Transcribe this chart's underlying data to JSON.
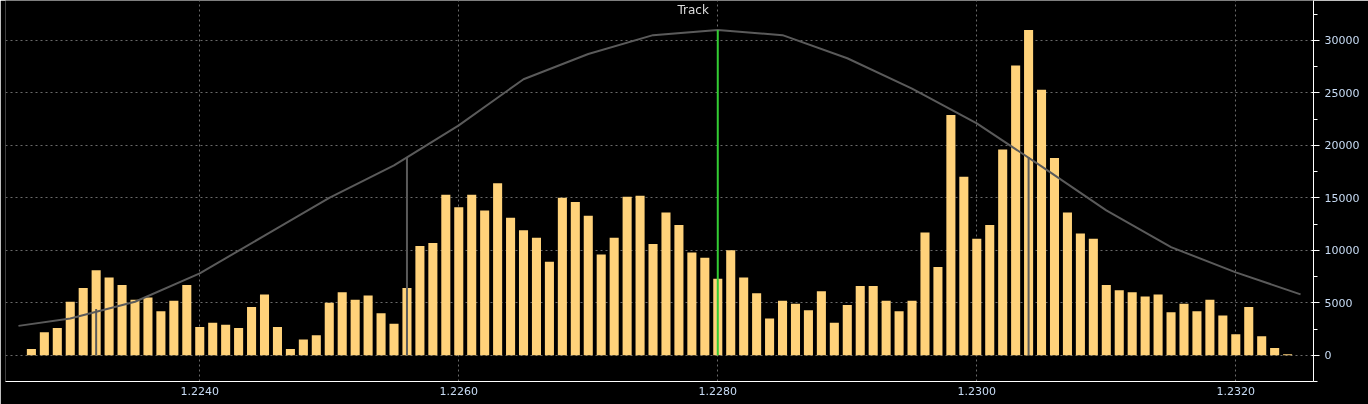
{
  "chart_data": {
    "type": "bar",
    "x": [
      1.2227,
      1.2228,
      1.2229,
      1.223,
      1.2231,
      1.2232,
      1.2233,
      1.2234,
      1.2235,
      1.2236,
      1.2237,
      1.2238,
      1.2239,
      1.224,
      1.2241,
      1.2242,
      1.2243,
      1.2244,
      1.2245,
      1.2246,
      1.2247,
      1.2248,
      1.2249,
      1.225,
      1.2251,
      1.2252,
      1.2253,
      1.2254,
      1.2255,
      1.2256,
      1.2257,
      1.2258,
      1.2259,
      1.226,
      1.2261,
      1.2262,
      1.2263,
      1.2264,
      1.2265,
      1.2266,
      1.2267,
      1.2268,
      1.2269,
      1.227,
      1.2271,
      1.2272,
      1.2273,
      1.2274,
      1.2275,
      1.2276,
      1.2277,
      1.2278,
      1.2279,
      1.228,
      1.2281,
      1.2282,
      1.2283,
      1.2284,
      1.2285,
      1.2286,
      1.2287,
      1.2288,
      1.2289,
      1.229,
      1.2291,
      1.2292,
      1.2293,
      1.2294,
      1.2295,
      1.2296,
      1.2297,
      1.2298,
      1.2299,
      1.23,
      1.2301,
      1.2302,
      1.2303,
      1.2304,
      1.2305,
      1.2306,
      1.2307,
      1.2308,
      1.2309,
      1.231,
      1.2311,
      1.2312,
      1.2313,
      1.2314,
      1.2315,
      1.2316,
      1.2317,
      1.2318,
      1.2319,
      1.232,
      1.2321,
      1.2322,
      1.2323,
      1.2324
    ],
    "series": [
      {
        "color": "#ffd27a",
        "values": [
          600,
          2200,
          2600,
          5100,
          6400,
          8100,
          7400,
          6700,
          5300,
          5500,
          4200,
          5200,
          6700,
          2700,
          3100,
          2900,
          2600,
          4600,
          5800,
          2700,
          600,
          1500,
          1900,
          5000,
          6000,
          5300,
          5700,
          4000,
          3000,
          6400,
          10400,
          10700,
          15300,
          14100,
          15300,
          13800,
          16400,
          13100,
          11900,
          11200,
          8900,
          15000,
          14600,
          13300,
          9600,
          11200,
          15100,
          15200,
          10600,
          13600,
          12400,
          9800,
          9300,
          7300,
          10000,
          7400,
          5900,
          3500,
          5200,
          4900,
          4300,
          6100,
          3100,
          4800,
          6600,
          6600,
          5200,
          4200,
          5200,
          11700,
          8400,
          22900,
          17000,
          11100,
          12400,
          19600,
          27600,
          31000,
          25300,
          18800,
          13600,
          11600,
          11100,
          6700,
          6200,
          6000,
          5600,
          5800,
          4100,
          4900,
          4200,
          5300,
          3800,
          2000,
          4600,
          1800,
          700,
          100
        ]
      },
      {
        "type": "line",
        "color": "#5a5a5a",
        "x": [
          1.2226,
          1.223,
          1.2235,
          1.224,
          1.2245,
          1.225,
          1.2255,
          1.226,
          1.2265,
          1.227,
          1.2275,
          1.228,
          1.2285,
          1.229,
          1.2295,
          1.23,
          1.2305,
          1.231,
          1.2315,
          1.232,
          1.2325
        ],
        "values": [
          2800,
          3500,
          5100,
          7800,
          11400,
          15000,
          18100,
          21900,
          26300,
          28700,
          30500,
          31000,
          30500,
          28300,
          25400,
          22100,
          18000,
          13800,
          10300,
          7900,
          5800
        ]
      },
      {
        "type": "line",
        "color": "#5a5a5a",
        "x": [
          1.2232,
          1.2232
        ],
        "values": [
          0,
          4400
        ]
      },
      {
        "type": "line",
        "color": "#5a5a5a",
        "x": [
          1.2256,
          1.2256
        ],
        "values": [
          0,
          18800
        ]
      },
      {
        "type": "line",
        "color": "#5a5a5a",
        "x": [
          1.2304,
          1.2304
        ],
        "values": [
          0,
          18900
        ]
      },
      {
        "type": "line",
        "color": "#33cc33",
        "x": [
          1.228,
          1.228
        ],
        "values": [
          31000,
          0
        ]
      }
    ],
    "xlim": [
      1.2225,
      1.2326
    ],
    "ylim": [
      -2500,
      33800
    ],
    "xticks": [
      {
        "value": 1.224,
        "label": "1.2240"
      },
      {
        "value": 1.226,
        "label": "1.2260"
      },
      {
        "value": 1.228,
        "label": "1.2280"
      },
      {
        "value": 1.23,
        "label": "1.2300"
      },
      {
        "value": 1.232,
        "label": "1.2320"
      }
    ],
    "yticks": [
      0,
      5000,
      10000,
      15000,
      20000,
      25000,
      30000
    ],
    "grid": true,
    "annotations": [
      "Track"
    ]
  }
}
